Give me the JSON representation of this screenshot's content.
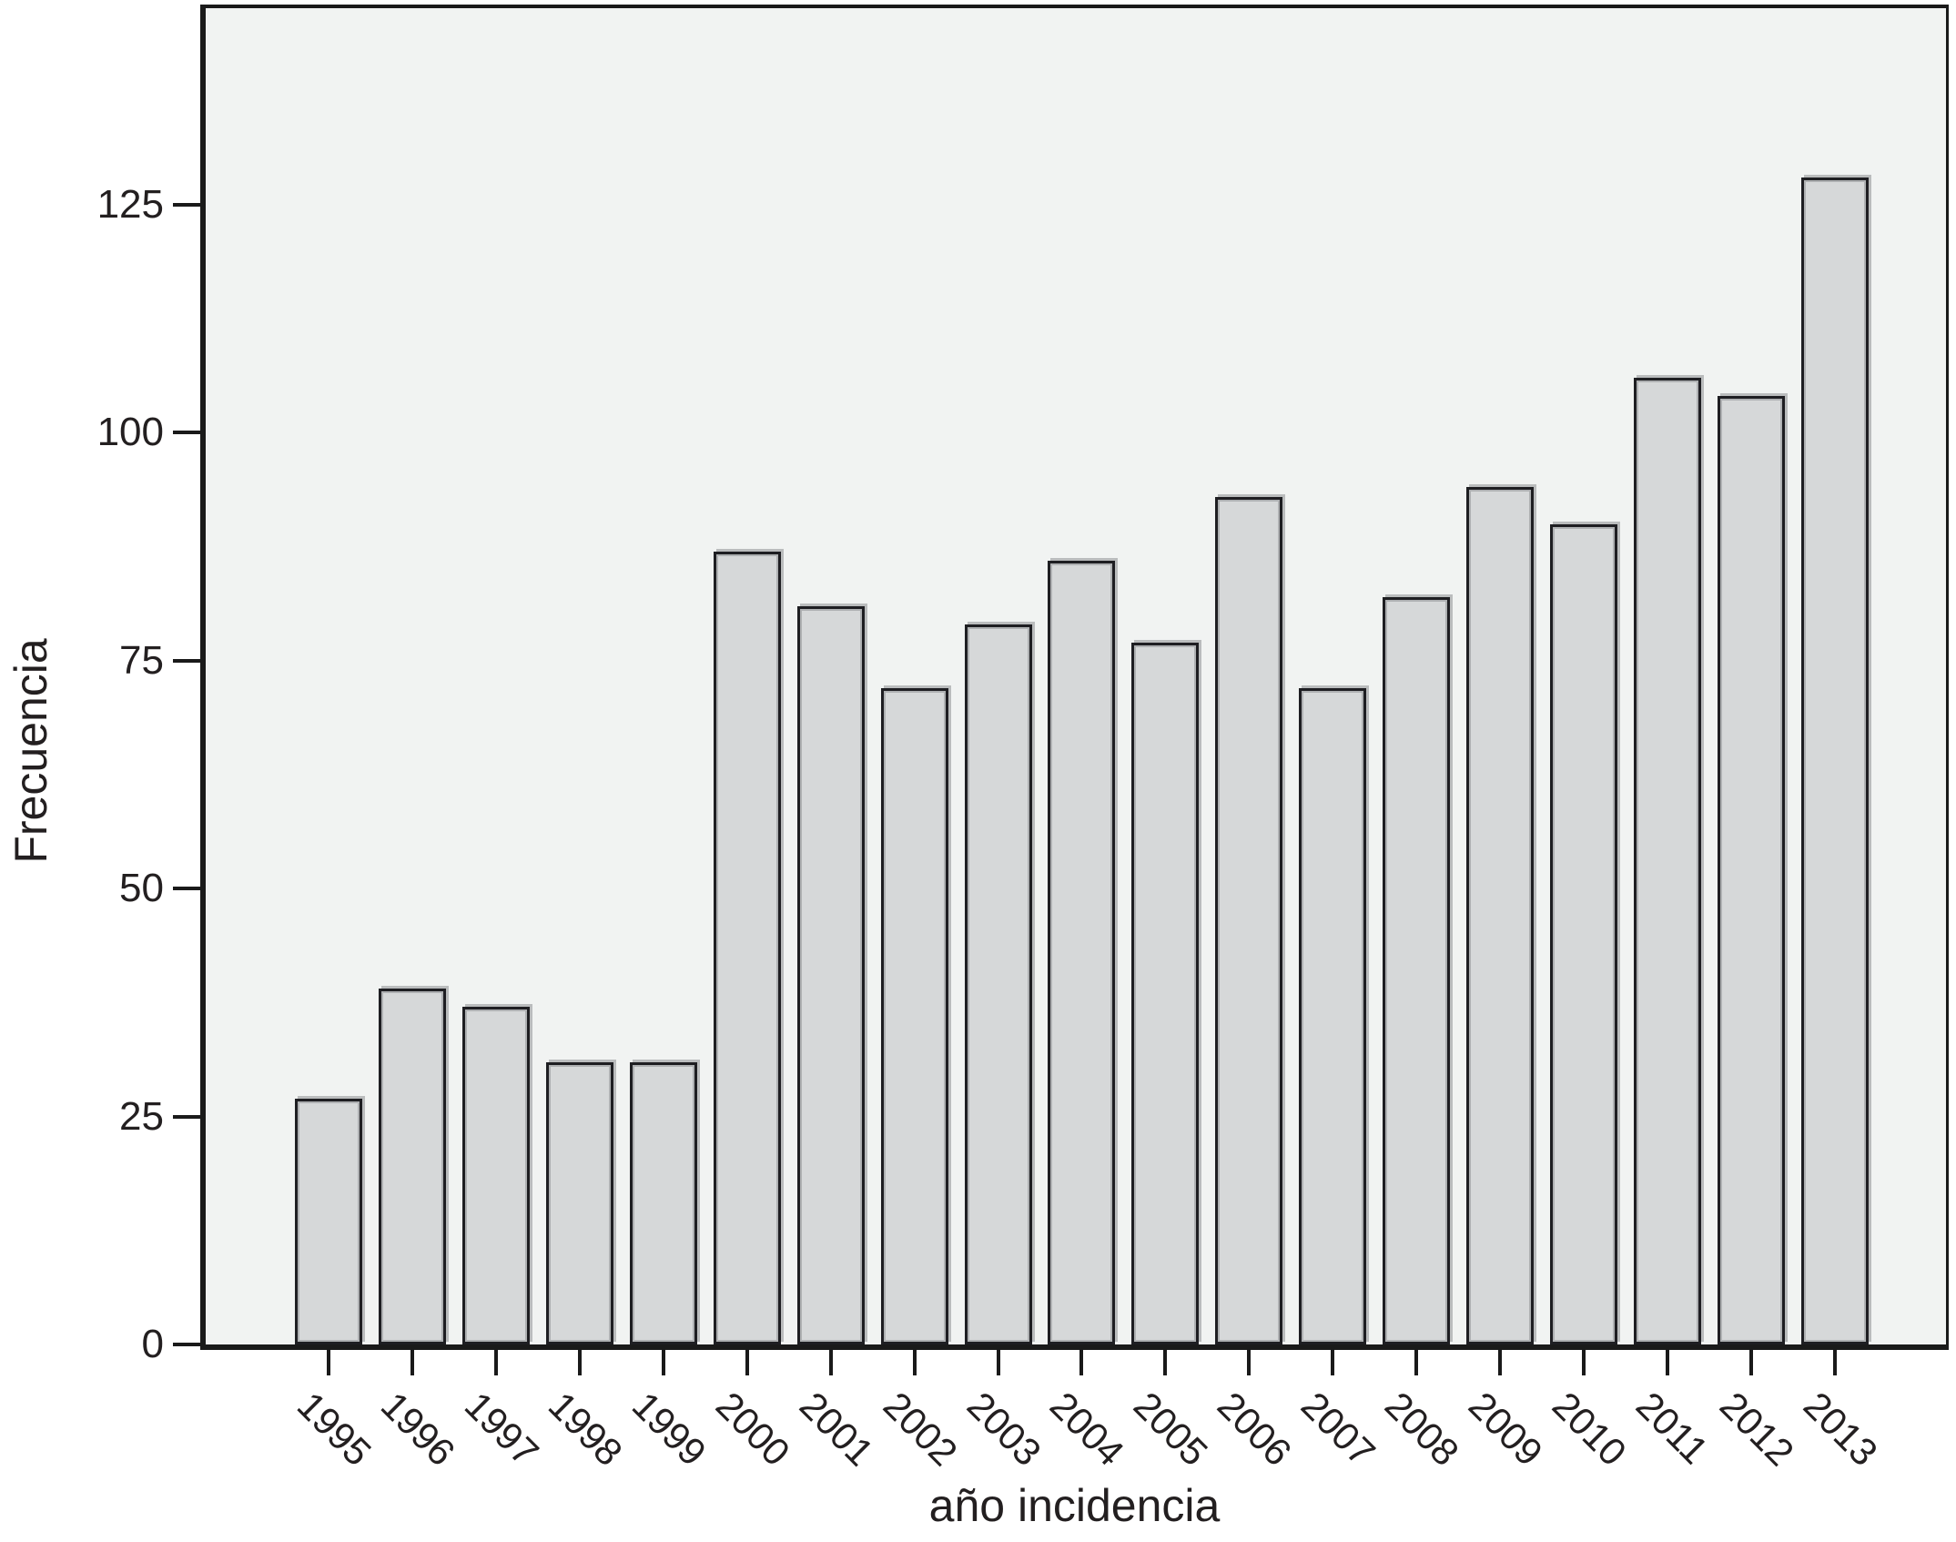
{
  "chart_data": {
    "type": "bar",
    "title": "",
    "categories": [
      "1995",
      "1996",
      "1997",
      "1998",
      "1999",
      "2000",
      "2001",
      "2002",
      "2003",
      "2004",
      "2005",
      "2006",
      "2007",
      "2008",
      "2009",
      "2010",
      "2011",
      "2012",
      "2013"
    ],
    "values": [
      27,
      39,
      37,
      31,
      31,
      87,
      81,
      72,
      79,
      86,
      77,
      93,
      72,
      82,
      94,
      90,
      106,
      104,
      128
    ],
    "xlabel": "año incidencia",
    "ylabel": "Frecuencia",
    "ylim": [
      0,
      146.7
    ],
    "yticks": [
      0,
      25,
      50,
      75,
      100,
      125
    ],
    "grid": false,
    "legend_position": "none"
  },
  "colors": {
    "plot_background": "#f1f3f2",
    "bar_fill": "#d6d8d9",
    "bar_border": "#1e1e22",
    "axis": "#1a1a1a",
    "text": "#231f20",
    "page_background": "#ffffff"
  }
}
